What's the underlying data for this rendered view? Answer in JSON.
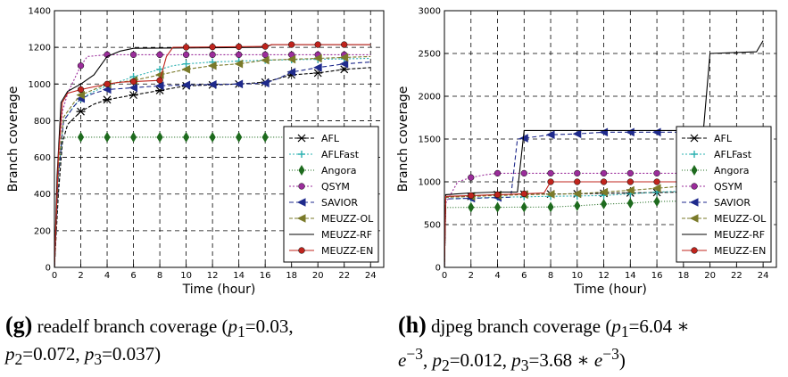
{
  "legend_entries": [
    {
      "name": "AFL",
      "color": "#000000",
      "marker": "x",
      "dash": "4,2"
    },
    {
      "name": "AFLFast",
      "color": "#2ab0b0",
      "marker": "plus",
      "dash": "2,2"
    },
    {
      "name": "Angora",
      "color": "#1e6b1e",
      "marker": "diamond",
      "dash": "1,2"
    },
    {
      "name": "QSYM",
      "color": "#9b2d9b",
      "marker": "circle",
      "dash": "2,2"
    },
    {
      "name": "SAVIOR",
      "color": "#1f2a8c",
      "marker": "triangle-left",
      "dash": "5,3"
    },
    {
      "name": "MEUZZ-OL",
      "color": "#7a7a2a",
      "marker": "triangle-left",
      "dash": "4,2"
    },
    {
      "name": "MEUZZ-RF",
      "color": "#000000",
      "marker": "none",
      "dash": ""
    },
    {
      "name": "MEUZZ-EN",
      "color": "#c0241d",
      "marker": "circle",
      "dash": ""
    }
  ],
  "chart_data": [
    {
      "type": "line",
      "xlabel": "Time (hour)",
      "ylabel": "Branch coverage",
      "xlim": [
        0,
        25
      ],
      "ylim": [
        0,
        1400
      ],
      "xticks": [
        0,
        2,
        4,
        6,
        8,
        10,
        12,
        14,
        16,
        18,
        20,
        22,
        24
      ],
      "yticks": [
        0,
        200,
        400,
        600,
        800,
        1000,
        1200,
        1400
      ],
      "grid": true,
      "legend": "lower-right",
      "series": [
        {
          "name": "AFL",
          "points": [
            [
              0,
              0
            ],
            [
              0.3,
              400
            ],
            [
              0.6,
              680
            ],
            [
              1,
              780
            ],
            [
              2,
              850
            ],
            [
              3,
              890
            ],
            [
              4,
              915
            ],
            [
              6,
              940
            ],
            [
              8,
              965
            ],
            [
              10,
              990
            ],
            [
              14,
              1000
            ],
            [
              16,
              1010
            ],
            [
              18,
              1050
            ],
            [
              20,
              1060
            ],
            [
              22,
              1080
            ],
            [
              24,
              1090
            ]
          ],
          "markers_x": [
            2,
            4,
            6,
            8,
            10,
            12,
            14,
            16,
            18,
            20,
            22
          ]
        },
        {
          "name": "AFLFast",
          "points": [
            [
              0,
              0
            ],
            [
              0.3,
              500
            ],
            [
              0.7,
              800
            ],
            [
              1.5,
              880
            ],
            [
              2,
              920
            ],
            [
              3,
              960
            ],
            [
              4,
              990
            ],
            [
              6,
              1040
            ],
            [
              8,
              1080
            ],
            [
              9,
              1100
            ],
            [
              10,
              1110
            ],
            [
              12,
              1120
            ],
            [
              16,
              1130
            ],
            [
              20,
              1135
            ],
            [
              24,
              1140
            ]
          ],
          "markers_x": [
            2,
            4,
            6,
            8,
            10,
            12,
            14,
            16,
            18,
            20,
            22
          ]
        },
        {
          "name": "Angora",
          "points": [
            [
              0,
              0
            ],
            [
              0.3,
              500
            ],
            [
              0.6,
              700
            ],
            [
              1,
              710
            ],
            [
              24,
              710
            ]
          ],
          "markers_x": [
            2,
            4,
            6,
            8,
            10,
            12,
            14,
            16,
            18,
            20,
            22
          ]
        },
        {
          "name": "QSYM",
          "points": [
            [
              0,
              0
            ],
            [
              0.3,
              600
            ],
            [
              0.6,
              850
            ],
            [
              1,
              950
            ],
            [
              2,
              1100
            ],
            [
              2.5,
              1150
            ],
            [
              4,
              1160
            ],
            [
              24,
              1160
            ]
          ],
          "markers_x": [
            2,
            4,
            6,
            8,
            10,
            12,
            14,
            16,
            18,
            20,
            22
          ]
        },
        {
          "name": "SAVIOR",
          "points": [
            [
              0,
              0
            ],
            [
              0.3,
              500
            ],
            [
              0.7,
              800
            ],
            [
              1.5,
              880
            ],
            [
              2,
              920
            ],
            [
              3,
              950
            ],
            [
              4,
              970
            ],
            [
              8,
              990
            ],
            [
              10,
              995
            ],
            [
              14,
              1000
            ],
            [
              16,
              1005
            ],
            [
              17,
              1030
            ],
            [
              18,
              1065
            ],
            [
              20,
              1090
            ],
            [
              22,
              1110
            ],
            [
              23,
              1115
            ],
            [
              24,
              1120
            ]
          ],
          "markers_x": [
            2,
            4,
            6,
            8,
            10,
            12,
            14,
            16,
            18,
            20,
            22
          ]
        },
        {
          "name": "MEUZZ-OL",
          "points": [
            [
              0,
              0
            ],
            [
              0.3,
              550
            ],
            [
              0.7,
              820
            ],
            [
              1.5,
              900
            ],
            [
              2,
              940
            ],
            [
              4,
              1000
            ],
            [
              6,
              1020
            ],
            [
              8,
              1050
            ],
            [
              10,
              1080
            ],
            [
              12,
              1100
            ],
            [
              14,
              1110
            ],
            [
              16,
              1130
            ],
            [
              20,
              1140
            ],
            [
              24,
              1150
            ]
          ],
          "markers_x": [
            2,
            4,
            6,
            8,
            10,
            12,
            14,
            16,
            18,
            20,
            22
          ]
        },
        {
          "name": "MEUZZ-RF",
          "points": [
            [
              0,
              0
            ],
            [
              0.2,
              500
            ],
            [
              0.5,
              900
            ],
            [
              1,
              960
            ],
            [
              2,
              1000
            ],
            [
              3,
              1050
            ],
            [
              4,
              1150
            ],
            [
              5,
              1180
            ],
            [
              6,
              1195
            ],
            [
              16,
              1200
            ],
            [
              16.5,
              1215
            ],
            [
              24,
              1215
            ]
          ],
          "markers_x": []
        },
        {
          "name": "MEUZZ-EN",
          "points": [
            [
              0,
              0
            ],
            [
              0.3,
              600
            ],
            [
              0.6,
              900
            ],
            [
              1,
              950
            ],
            [
              2,
              970
            ],
            [
              4,
              1000
            ],
            [
              5,
              1010
            ],
            [
              8,
              1020
            ],
            [
              8.5,
              1150
            ],
            [
              9,
              1200
            ],
            [
              16,
              1205
            ],
            [
              16.5,
              1215
            ],
            [
              24,
              1215
            ]
          ],
          "markers_x": [
            2,
            4,
            6,
            8,
            10,
            12,
            14,
            16,
            18,
            20,
            22
          ]
        }
      ]
    },
    {
      "type": "line",
      "xlabel": "Time (hour)",
      "ylabel": "Branch coverage",
      "xlim": [
        0,
        25
      ],
      "ylim": [
        0,
        3000
      ],
      "xticks": [
        0,
        2,
        4,
        6,
        8,
        10,
        12,
        14,
        16,
        18,
        20,
        22,
        24
      ],
      "yticks": [
        0,
        500,
        1000,
        1500,
        2000,
        2500,
        3000
      ],
      "grid": true,
      "legend": "lower-right",
      "series": [
        {
          "name": "AFL",
          "points": [
            [
              0,
              0
            ],
            [
              0.1,
              820
            ],
            [
              2,
              830
            ],
            [
              4,
              850
            ],
            [
              6,
              855
            ],
            [
              10,
              860
            ],
            [
              14,
              870
            ],
            [
              18,
              880
            ],
            [
              22,
              890
            ],
            [
              24,
              900
            ]
          ],
          "markers_x": [
            2,
            4,
            6,
            8,
            10,
            12,
            14,
            16,
            18,
            20,
            22
          ]
        },
        {
          "name": "AFLFast",
          "points": [
            [
              0,
              0
            ],
            [
              0.1,
              800
            ],
            [
              4,
              820
            ],
            [
              8,
              830
            ],
            [
              12,
              840
            ],
            [
              16,
              880
            ],
            [
              20,
              900
            ],
            [
              24,
              910
            ]
          ],
          "markers_x": [
            2,
            4,
            6,
            8,
            10,
            12,
            14,
            16,
            18,
            20,
            22
          ]
        },
        {
          "name": "Angora",
          "points": [
            [
              0,
              0
            ],
            [
              0.1,
              700
            ],
            [
              8,
              705
            ],
            [
              10,
              720
            ],
            [
              12,
              740
            ],
            [
              14,
              750
            ],
            [
              16,
              770
            ],
            [
              20,
              780
            ],
            [
              24,
              800
            ]
          ],
          "markers_x": [
            2,
            4,
            6,
            8,
            10,
            12,
            14,
            16,
            18,
            20,
            22
          ]
        },
        {
          "name": "QSYM",
          "points": [
            [
              0,
              0
            ],
            [
              0.1,
              750
            ],
            [
              1,
              1000
            ],
            [
              2,
              1050
            ],
            [
              3,
              1080
            ],
            [
              4,
              1100
            ],
            [
              24,
              1100
            ]
          ],
          "markers_x": [
            2,
            4,
            6,
            8,
            10,
            12,
            14,
            16,
            18,
            20,
            22
          ]
        },
        {
          "name": "SAVIOR",
          "points": [
            [
              0,
              0
            ],
            [
              0.1,
              800
            ],
            [
              5,
              820
            ],
            [
              5.5,
              1500
            ],
            [
              8,
              1550
            ],
            [
              10,
              1560
            ],
            [
              12,
              1580
            ],
            [
              24,
              1580
            ]
          ],
          "markers_x": [
            2,
            4,
            6,
            8,
            10,
            12,
            14,
            16,
            18,
            20,
            22
          ]
        },
        {
          "name": "MEUZZ-OL",
          "points": [
            [
              0,
              0
            ],
            [
              0.1,
              820
            ],
            [
              4,
              840
            ],
            [
              6,
              850
            ],
            [
              10,
              860
            ],
            [
              14,
              900
            ],
            [
              18,
              950
            ],
            [
              20,
              980
            ],
            [
              24,
              1000
            ]
          ],
          "markers_x": [
            2,
            4,
            6,
            8,
            10,
            12,
            14,
            16,
            18,
            20,
            22
          ]
        },
        {
          "name": "MEUZZ-RF",
          "points": [
            [
              0,
              0
            ],
            [
              0.1,
              850
            ],
            [
              2,
              870
            ],
            [
              4,
              880
            ],
            [
              5.5,
              880
            ],
            [
              6,
              1600
            ],
            [
              16,
              1600
            ],
            [
              19.5,
              1600
            ],
            [
              20,
              2500
            ],
            [
              23.5,
              2520
            ],
            [
              24,
              2650
            ]
          ],
          "markers_x": []
        },
        {
          "name": "MEUZZ-EN",
          "points": [
            [
              0,
              0
            ],
            [
              0.1,
              830
            ],
            [
              2,
              840
            ],
            [
              4,
              850
            ],
            [
              6,
              860
            ],
            [
              7.5,
              870
            ],
            [
              8,
              1000
            ],
            [
              24,
              1000
            ]
          ],
          "markers_x": [
            2,
            4,
            6,
            8,
            10,
            12,
            14,
            16,
            18,
            20,
            22
          ]
        }
      ]
    }
  ],
  "captions": [
    {
      "tag": "(g)",
      "text": " readelf branch coverage (",
      "p1_label": "p",
      "p1_sub": "1",
      "p1_val": "=0.03,",
      "p2_label": "p",
      "p2_sub": "2",
      "p2_val": "=0.072, ",
      "p3_label": "p",
      "p3_sub": "3",
      "p3_val": "=0.037)"
    },
    {
      "tag": "(h)",
      "text": " djpeg branch coverage (",
      "p1_label": "p",
      "p1_sub": "1",
      "p1_val": "=6.04 ∗",
      "exp1_base": "e",
      "exp1_pow": "−3",
      "p2_label": "p",
      "p2_sub": "2",
      "p2_val": "=0.012, ",
      "p3_label": "p",
      "p3_sub": "3",
      "p3_val": "=3.68 ∗ ",
      "exp3_base": "e",
      "exp3_pow": "−3",
      "close": ")"
    }
  ]
}
